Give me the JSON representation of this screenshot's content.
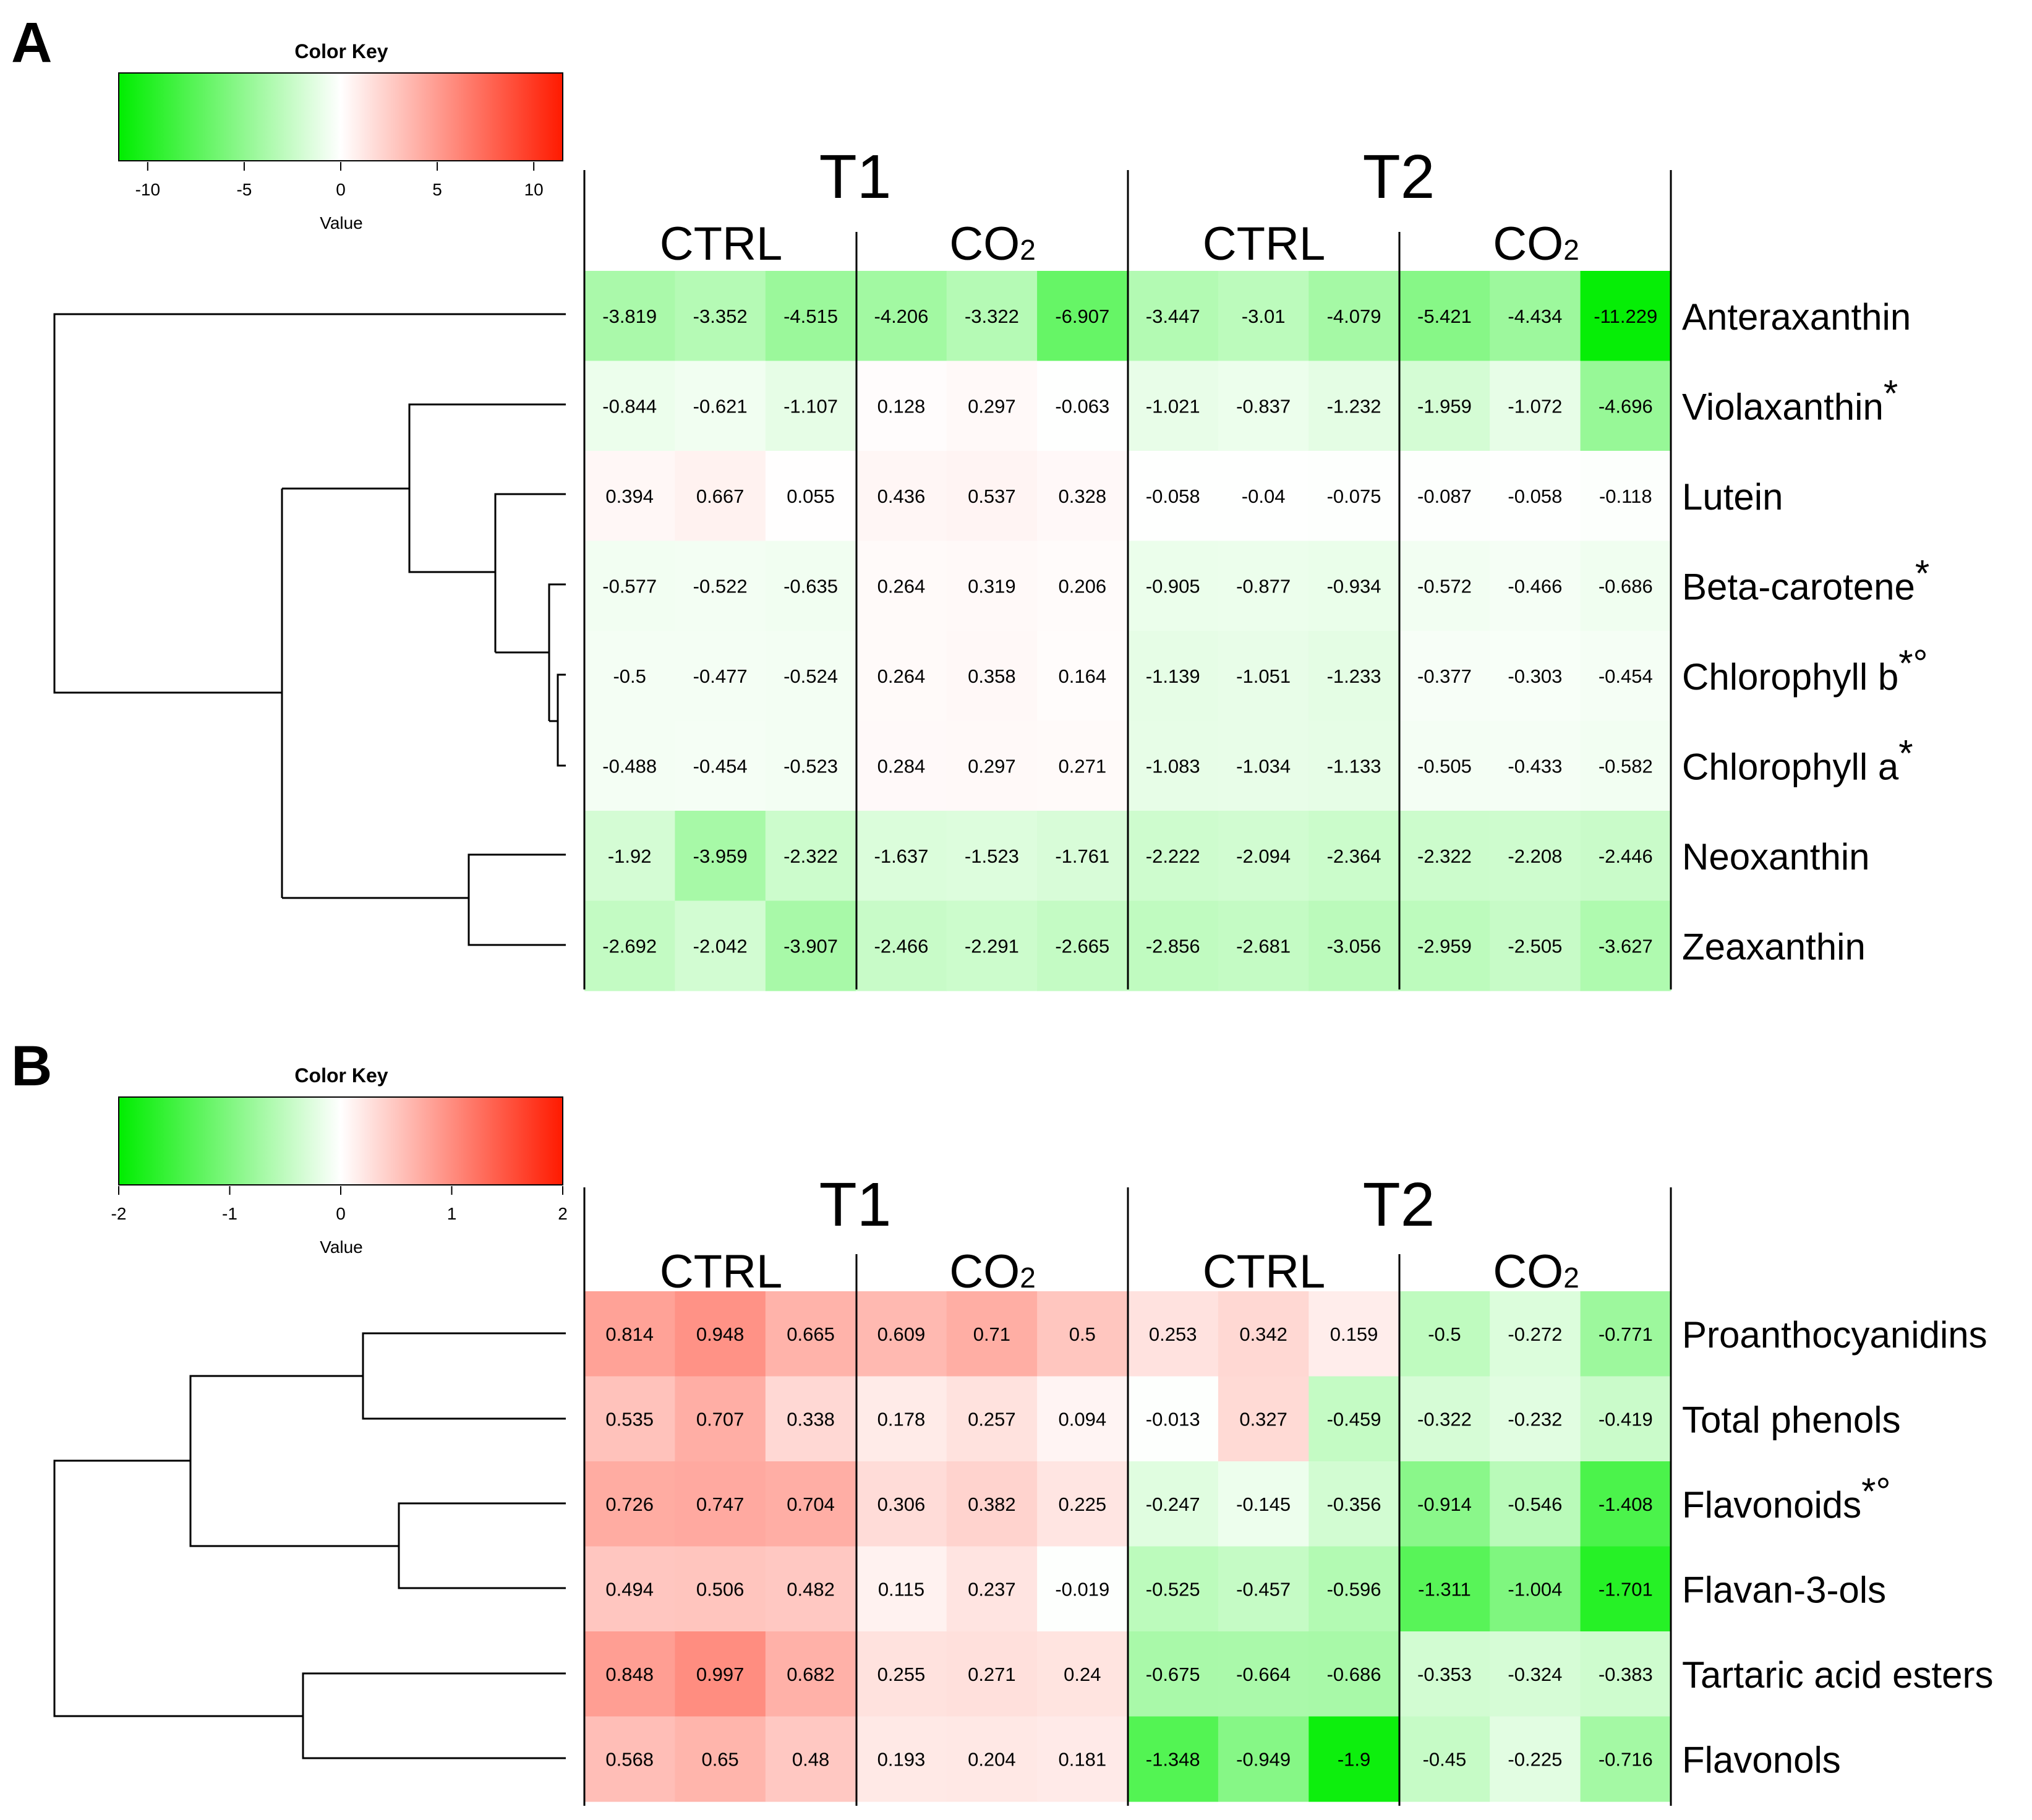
{
  "panels": [
    {
      "label": "A",
      "color_key": {
        "title": "Color Key",
        "axis_label": "Value",
        "min": -11.5,
        "max": 11.5,
        "ticks": [
          -10,
          -5,
          0,
          5,
          10
        ],
        "tick_labels": [
          "-10",
          "-5",
          "0",
          "5",
          "10"
        ]
      },
      "top_groups": [
        "T1",
        "T2"
      ],
      "sub_groups": [
        {
          "text": "CTRL",
          "sub": ""
        },
        {
          "text": "CO",
          "sub": "2"
        },
        {
          "text": "CTRL",
          "sub": ""
        },
        {
          "text": "CO",
          "sub": "2"
        }
      ],
      "rows": [
        {
          "name": "Anteraxanthin",
          "mark": "",
          "values": [
            -3.819,
            -3.352,
            -4.515,
            -4.206,
            -3.322,
            -6.907,
            -3.447,
            -3.01,
            -4.079,
            -5.421,
            -4.434,
            -11.229
          ]
        },
        {
          "name": "Violaxanthin",
          "mark": "*",
          "values": [
            -0.844,
            -0.621,
            -1.107,
            0.128,
            0.297,
            -0.063,
            -1.021,
            -0.837,
            -1.232,
            -1.959,
            -1.072,
            -4.696
          ]
        },
        {
          "name": "Lutein",
          "mark": "",
          "values": [
            0.394,
            0.667,
            0.055,
            0.436,
            0.537,
            0.328,
            -0.058,
            -0.04,
            -0.075,
            -0.087,
            -0.058,
            -0.118
          ]
        },
        {
          "name": "Beta-carotene",
          "mark": "*",
          "values": [
            -0.577,
            -0.522,
            -0.635,
            0.264,
            0.319,
            0.206,
            -0.905,
            -0.877,
            -0.934,
            -0.572,
            -0.466,
            -0.686
          ]
        },
        {
          "name": "Chlorophyll b",
          "mark": "*°",
          "values": [
            -0.5,
            -0.477,
            -0.524,
            0.264,
            0.358,
            0.164,
            -1.139,
            -1.051,
            -1.233,
            -0.377,
            -0.303,
            -0.454
          ]
        },
        {
          "name": "Chlorophyll a",
          "mark": "*",
          "values": [
            -0.488,
            -0.454,
            -0.523,
            0.284,
            0.297,
            0.271,
            -1.083,
            -1.034,
            -1.133,
            -0.505,
            -0.433,
            -0.582
          ]
        },
        {
          "name": "Neoxanthin",
          "mark": "",
          "values": [
            -1.92,
            -3.959,
            -2.322,
            -1.637,
            -1.523,
            -1.761,
            -2.222,
            -2.094,
            -2.364,
            -2.322,
            -2.208,
            -2.446
          ]
        },
        {
          "name": "Zeaxanthin",
          "mark": "",
          "values": [
            -2.692,
            -2.042,
            -3.907,
            -2.466,
            -2.291,
            -2.665,
            -2.856,
            -2.681,
            -3.056,
            -2.959,
            -2.505,
            -3.627
          ]
        }
      ]
    },
    {
      "label": "B",
      "color_key": {
        "title": "Color Key",
        "axis_label": "Value",
        "min": -2,
        "max": 2,
        "ticks": [
          -2,
          -1,
          0,
          1,
          2
        ],
        "tick_labels": [
          "-2",
          "-1",
          "0",
          "1",
          "2"
        ]
      },
      "top_groups": [
        "T1",
        "T2"
      ],
      "sub_groups": [
        {
          "text": "CTRL",
          "sub": ""
        },
        {
          "text": "CO",
          "sub": "2"
        },
        {
          "text": "CTRL",
          "sub": ""
        },
        {
          "text": "CO",
          "sub": "2"
        }
      ],
      "rows": [
        {
          "name": "Proanthocyanidins",
          "mark": "",
          "values": [
            0.814,
            0.948,
            0.665,
            0.609,
            0.71,
            0.5,
            0.253,
            0.342,
            0.159,
            -0.5,
            -0.272,
            -0.771
          ]
        },
        {
          "name": "Total phenols",
          "mark": "",
          "values": [
            0.535,
            0.707,
            0.338,
            0.178,
            0.257,
            0.094,
            -0.013,
            0.327,
            -0.459,
            -0.322,
            -0.232,
            -0.419
          ]
        },
        {
          "name": "Flavonoids",
          "mark": "*°",
          "values": [
            0.726,
            0.747,
            0.704,
            0.306,
            0.382,
            0.225,
            -0.247,
            -0.145,
            -0.356,
            -0.914,
            -0.546,
            -1.408
          ]
        },
        {
          "name": "Flavan-3-ols",
          "mark": "",
          "values": [
            0.494,
            0.506,
            0.482,
            0.115,
            0.237,
            -0.019,
            -0.525,
            -0.457,
            -0.596,
            -1.311,
            -1.004,
            -1.701
          ]
        },
        {
          "name": "Tartaric acid esters",
          "mark": "",
          "values": [
            0.848,
            0.997,
            0.682,
            0.255,
            0.271,
            0.24,
            -0.675,
            -0.664,
            -0.686,
            -0.353,
            -0.324,
            -0.383
          ]
        },
        {
          "name": "Flavonols",
          "mark": "",
          "values": [
            0.568,
            0.65,
            0.48,
            0.193,
            0.204,
            0.181,
            -1.348,
            -0.949,
            -1.9,
            -0.45,
            -0.225,
            -0.716
          ]
        }
      ]
    }
  ],
  "chart_data": [
    {
      "type": "heatmap",
      "title": "A",
      "xlabel": "",
      "ylabel": "",
      "color_key_title": "Color Key",
      "color_key_label": "Value",
      "color_range": [
        -11.5,
        11.5
      ],
      "colors": {
        "low": "#00ee00",
        "mid": "#ffffff",
        "high": "#ff1a00"
      },
      "column_groups": [
        "T1 CTRL",
        "T1 CO2",
        "T2 CTRL",
        "T2 CO2"
      ],
      "rows": [
        "Anteraxanthin",
        "Violaxanthin",
        "Lutein",
        "Beta-carotene",
        "Chlorophyll b",
        "Chlorophyll a",
        "Neoxanthin",
        "Zeaxanthin"
      ]
    },
    {
      "type": "heatmap",
      "title": "B",
      "xlabel": "",
      "ylabel": "",
      "color_key_title": "Color Key",
      "color_key_label": "Value",
      "color_range": [
        -2,
        2
      ],
      "colors": {
        "low": "#00ee00",
        "mid": "#ffffff",
        "high": "#ff1a00"
      },
      "column_groups": [
        "T1 CTRL",
        "T1 CO2",
        "T2 CTRL",
        "T2 CO2"
      ],
      "rows": [
        "Proanthocyanidins",
        "Total phenols",
        "Flavonoids",
        "Flavan-3-ols",
        "Tartaric acid esters",
        "Flavonols"
      ]
    }
  ]
}
